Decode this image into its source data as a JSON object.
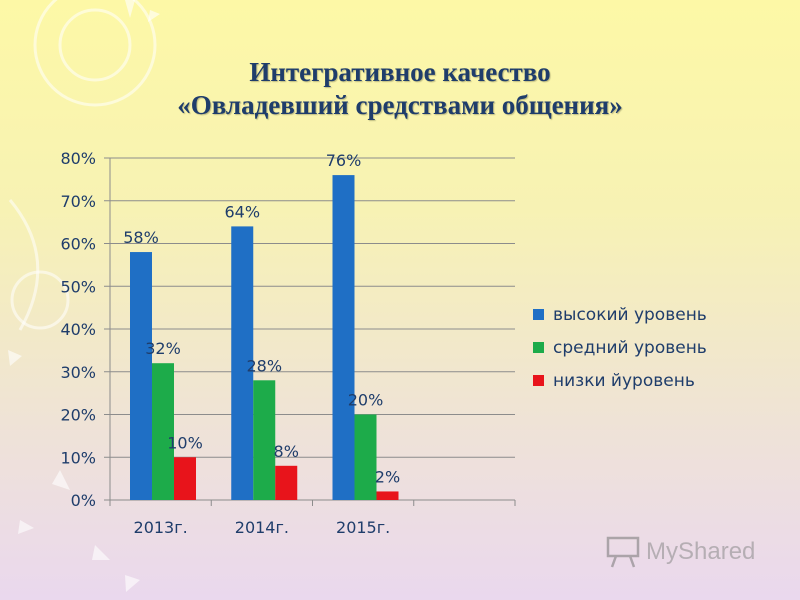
{
  "title": {
    "line1": "Интегративное качество",
    "line2": "«Овладевший средствами общения»"
  },
  "colors": {
    "high": "#1f6fc5",
    "medium": "#1dab4a",
    "low": "#e8141b",
    "text": "#1f3d6b",
    "grid": "#8c8c8c"
  },
  "chart_data": {
    "type": "bar",
    "title": "Интегративное качество «Овладевший средствами общения»",
    "categories": [
      "2013г.",
      "2014г.",
      "2015г."
    ],
    "series": [
      {
        "name": "высокий уровень",
        "values": [
          58,
          64,
          76
        ],
        "labels": [
          "58%",
          "64%",
          "76%"
        ]
      },
      {
        "name": "средний уровень",
        "values": [
          32,
          28,
          20
        ],
        "labels": [
          "32%",
          "28%",
          "20%"
        ]
      },
      {
        "name": "низки йуровень",
        "values": [
          10,
          8,
          2
        ],
        "labels": [
          "10%",
          "8%",
          "2%"
        ]
      }
    ],
    "ylim": [
      0,
      80
    ],
    "yticks": [
      "0%",
      "10%",
      "20%",
      "30%",
      "40%",
      "50%",
      "60%",
      "70%",
      "80%"
    ],
    "grid": true,
    "legend": "right"
  },
  "watermark": {
    "text": "MyShared",
    "icon": "projector-icon"
  }
}
